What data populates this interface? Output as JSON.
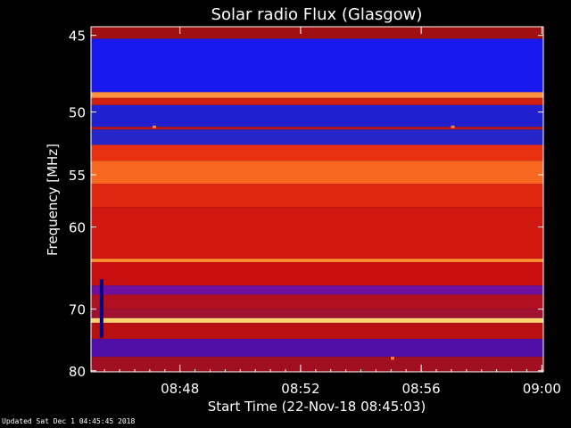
{
  "chart_data": {
    "type": "heatmap",
    "title": "Solar radio Flux (Glasgow)",
    "xlabel": "Start Time (22-Nov-18 08:45:03)",
    "ylabel": "Frequency [MHz]",
    "x_ticks": [
      "08:48",
      "08:52",
      "08:56",
      "09:00"
    ],
    "x_tick_minutes": [
      2.95,
      6.95,
      10.95,
      14.95
    ],
    "x_range_minutes": [
      0,
      15
    ],
    "y_ticks": [
      45,
      50,
      55,
      60,
      70,
      80
    ],
    "y_scale": "reciprocal",
    "y_range_mhz": [
      44.5,
      80.2
    ],
    "grid": false,
    "colors": {
      "background": "#000000",
      "low": "#0000c8",
      "mid": "#c80000",
      "high": "#ffe080",
      "text": "#ffffff"
    },
    "bands": [
      {
        "from_mhz": 44.5,
        "to_mhz": 45.2,
        "color": "#a01010"
      },
      {
        "from_mhz": 45.2,
        "to_mhz": 48.6,
        "color": "#1818f0"
      },
      {
        "from_mhz": 48.6,
        "to_mhz": 49.0,
        "color": "#ff9040"
      },
      {
        "from_mhz": 49.0,
        "to_mhz": 49.5,
        "color": "#d02010"
      },
      {
        "from_mhz": 49.5,
        "to_mhz": 51.1,
        "color": "#2020d0"
      },
      {
        "from_mhz": 51.1,
        "to_mhz": 51.3,
        "color": "#c01818"
      },
      {
        "from_mhz": 51.3,
        "to_mhz": 52.5,
        "color": "#2525c8"
      },
      {
        "from_mhz": 52.5,
        "to_mhz": 53.8,
        "color": "#e83010"
      },
      {
        "from_mhz": 53.8,
        "to_mhz": 55.8,
        "color": "#f86820"
      },
      {
        "from_mhz": 55.8,
        "to_mhz": 58.0,
        "color": "#e02810"
      },
      {
        "from_mhz": 58.0,
        "to_mhz": 63.5,
        "color": "#d01810"
      },
      {
        "from_mhz": 63.5,
        "to_mhz": 63.9,
        "color": "#ff9030"
      },
      {
        "from_mhz": 63.9,
        "to_mhz": 66.8,
        "color": "#c81010"
      },
      {
        "from_mhz": 66.8,
        "to_mhz": 68.0,
        "color": "#7010a0"
      },
      {
        "from_mhz": 68.0,
        "to_mhz": 70.0,
        "color": "#b01020"
      },
      {
        "from_mhz": 70.0,
        "to_mhz": 71.3,
        "color": "#a01030"
      },
      {
        "from_mhz": 71.3,
        "to_mhz": 72.0,
        "color": "#ffd070"
      },
      {
        "from_mhz": 72.0,
        "to_mhz": 74.5,
        "color": "#b81010"
      },
      {
        "from_mhz": 74.5,
        "to_mhz": 77.5,
        "color": "#5010a8"
      },
      {
        "from_mhz": 77.5,
        "to_mhz": 80.2,
        "color": "#a01020"
      }
    ],
    "events": [
      {
        "time_min": 0.35,
        "from_mhz": 66.0,
        "to_mhz": 74.3,
        "color": "#000080"
      },
      {
        "time_min": 2.1,
        "from_mhz": 51.0,
        "to_mhz": 51.2,
        "color": "#ff8040"
      },
      {
        "time_min": 12.0,
        "from_mhz": 51.0,
        "to_mhz": 51.2,
        "color": "#ff8040"
      },
      {
        "time_min": 10.0,
        "from_mhz": 77.5,
        "to_mhz": 78.0,
        "color": "#ff8040"
      }
    ]
  },
  "footer": "Updated Sat Dec  1 04:45:45 2018"
}
